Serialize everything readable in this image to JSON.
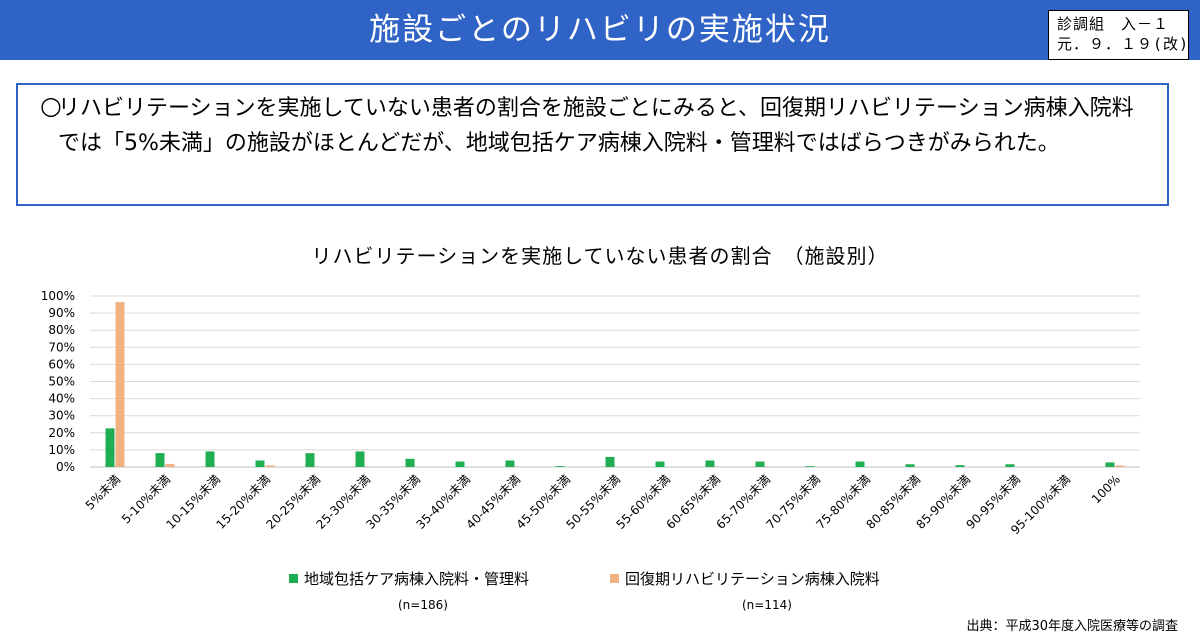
{
  "header": {
    "title": "施設ごとのリハビリの実施状況",
    "code_line1": "診調組　入－１",
    "code_line2": "元．９．１９(改)"
  },
  "summary": {
    "bullet": "○",
    "text": "リハビリテーションを実施していない患者の割合を施設ごとにみると、回復期リハビリテーション病棟入院料では「5%未満」の施設がほとんどだが、地域包括ケア病棟入院料・管理料ではばらつきがみられた。"
  },
  "chart_data": {
    "type": "bar",
    "title": "リハビリテーションを実施していない患者の割合　（施設別）",
    "categories": [
      "5%未満",
      "5-10%未満",
      "10-15%未満",
      "15-20%未満",
      "20-25%未満",
      "25-30%未満",
      "30-35%未満",
      "35-40%未満",
      "40-45%未満",
      "45-50%未満",
      "50-55%未満",
      "55-60%未満",
      "60-65%未満",
      "65-70%未満",
      "70-75%未満",
      "75-80%未満",
      "80-85%未満",
      "85-90%未満",
      "90-95%未満",
      "95-100%未満",
      "100%"
    ],
    "ytick_labels": [
      "0%",
      "10%",
      "20%",
      "30%",
      "40%",
      "50%",
      "60%",
      "70%",
      "80%",
      "90%",
      "100%"
    ],
    "ylim": [
      0,
      100
    ],
    "grid": true,
    "legend_position": "bottom",
    "series": [
      {
        "name": "地域包括ケア病棟入院料・管理料",
        "n_label": "(n=186)",
        "color": "#1fae52",
        "values": [
          22.6,
          8.1,
          9.1,
          3.8,
          8.1,
          9.1,
          4.8,
          3.2,
          3.8,
          0.5,
          5.9,
          3.2,
          3.8,
          3.2,
          0.5,
          3.2,
          1.6,
          1.1,
          1.6,
          0,
          2.7
        ]
      },
      {
        "name": "回復期リハビリテーション病棟入院料",
        "n_label": "(n=114)",
        "color": "#f0b183",
        "values": [
          96.5,
          1.8,
          0,
          0.9,
          0,
          0,
          0,
          0,
          0,
          0,
          0,
          0,
          0,
          0,
          0,
          0,
          0,
          0,
          0,
          0,
          0.9
        ]
      }
    ]
  },
  "source": "出典：平成30年度入院医療等の調査"
}
